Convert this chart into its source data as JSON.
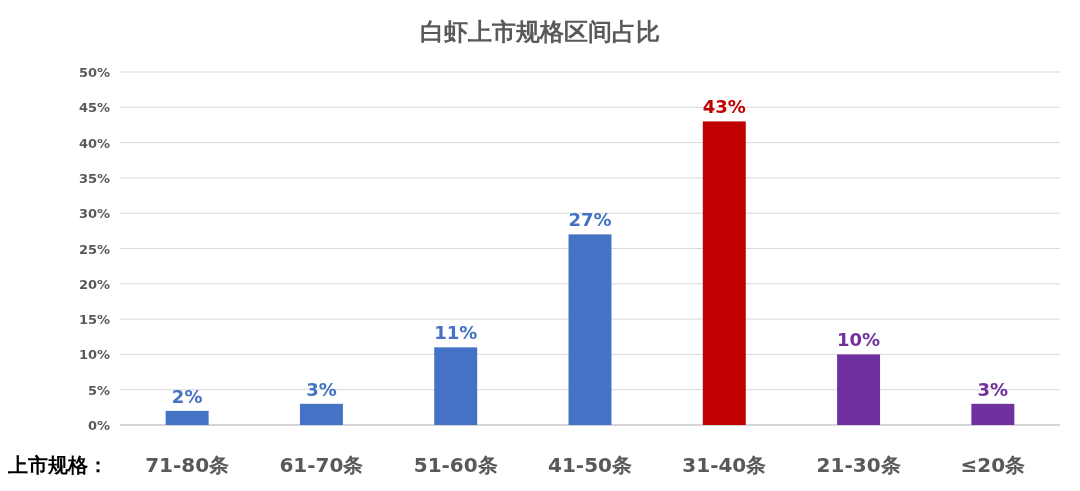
{
  "chart_data": {
    "type": "bar",
    "title": "白虾上市规格区间占比",
    "xlabel": "上市规格：",
    "categories": [
      "71-80条",
      "61-70条",
      "51-60条",
      "41-50条",
      "31-40条",
      "21-30条",
      "≤20条"
    ],
    "values": [
      2,
      3,
      11,
      27,
      43,
      10,
      3
    ],
    "colors": [
      "#4472c4",
      "#4472c4",
      "#4472c4",
      "#4472c4",
      "#c00000",
      "#7030a0",
      "#7030a0"
    ],
    "ylim": [
      0,
      50
    ],
    "yticks": [
      {
        "value": 0,
        "label": "0%"
      },
      {
        "value": 5,
        "label": "5%"
      },
      {
        "value": 10,
        "label": "10%"
      },
      {
        "value": 15,
        "label": "15%"
      },
      {
        "value": 20,
        "label": "20%"
      },
      {
        "value": 25,
        "label": "25%"
      },
      {
        "value": 30,
        "label": "30%"
      },
      {
        "value": 35,
        "label": "35%"
      },
      {
        "value": 40,
        "label": "40%"
      },
      {
        "value": 45,
        "label": "45%"
      },
      {
        "value": 50,
        "label": "50%"
      }
    ],
    "value_labels": [
      "2%",
      "3%",
      "11%",
      "27%",
      "43%",
      "10%",
      "3%"
    ],
    "grid": "y"
  }
}
